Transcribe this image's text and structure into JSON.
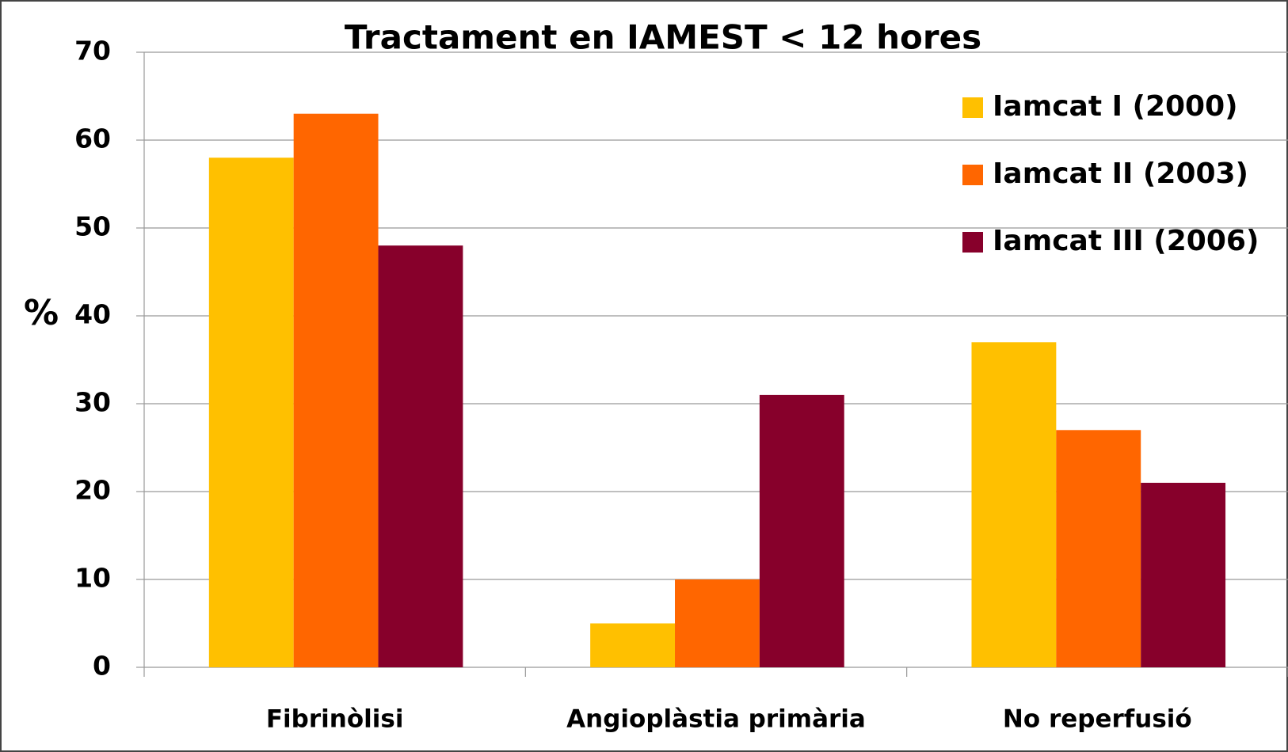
{
  "chart_data": {
    "type": "bar",
    "title": "Tractament en IAMEST < 12 hores",
    "y_label": "%",
    "categories": [
      "Fibrinòlisi",
      "Angioplàstia primària",
      "No reperfusió"
    ],
    "series": [
      {
        "name": "Iamcat I (2000)",
        "color": "#FFC000",
        "values": [
          58,
          5,
          37
        ]
      },
      {
        "name": "Iamcat II (2003)",
        "color": "#FF6600",
        "values": [
          63,
          10,
          27
        ]
      },
      {
        "name": "Iamcat III (2006)",
        "color": "#87002B",
        "values": [
          48,
          31,
          21
        ]
      }
    ],
    "ylim": [
      0,
      70
    ],
    "yticks": [
      0,
      10,
      20,
      30,
      40,
      50,
      60,
      70
    ],
    "grid": true,
    "legend": "top-right"
  }
}
